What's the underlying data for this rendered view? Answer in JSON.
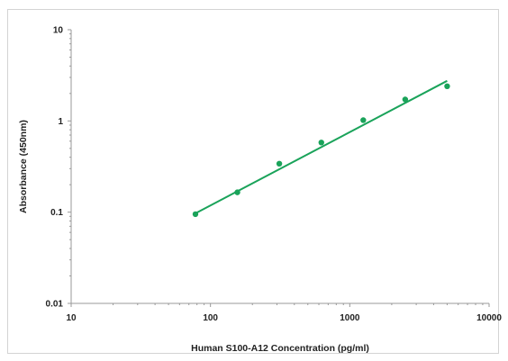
{
  "chart_data": {
    "type": "scatter",
    "title": "",
    "xlabel": "Human S100-A12 Concentration (pg/ml)",
    "ylabel": "Absorbance (450nm)",
    "xscale": "log",
    "yscale": "log",
    "xlim": [
      10,
      10000
    ],
    "ylim": [
      0.01,
      10
    ],
    "xticks": [
      "10",
      "100",
      "1000",
      "10000"
    ],
    "yticks": [
      "10",
      "1",
      "0.1",
      "0.01"
    ],
    "grid": false,
    "legend": "none",
    "series": [
      {
        "points": [
          {
            "x": 78,
            "y": 0.095
          },
          {
            "x": 156,
            "y": 0.165
          },
          {
            "x": 312,
            "y": 0.34
          },
          {
            "x": 625,
            "y": 0.58
          },
          {
            "x": 1250,
            "y": 1.02
          },
          {
            "x": 2500,
            "y": 1.72
          },
          {
            "x": 5000,
            "y": 2.4
          }
        ],
        "fit_line": [
          {
            "x": 78,
            "y": 0.097
          },
          {
            "x": 5000,
            "y": 2.75
          }
        ],
        "color": "#1aa35a"
      }
    ]
  }
}
